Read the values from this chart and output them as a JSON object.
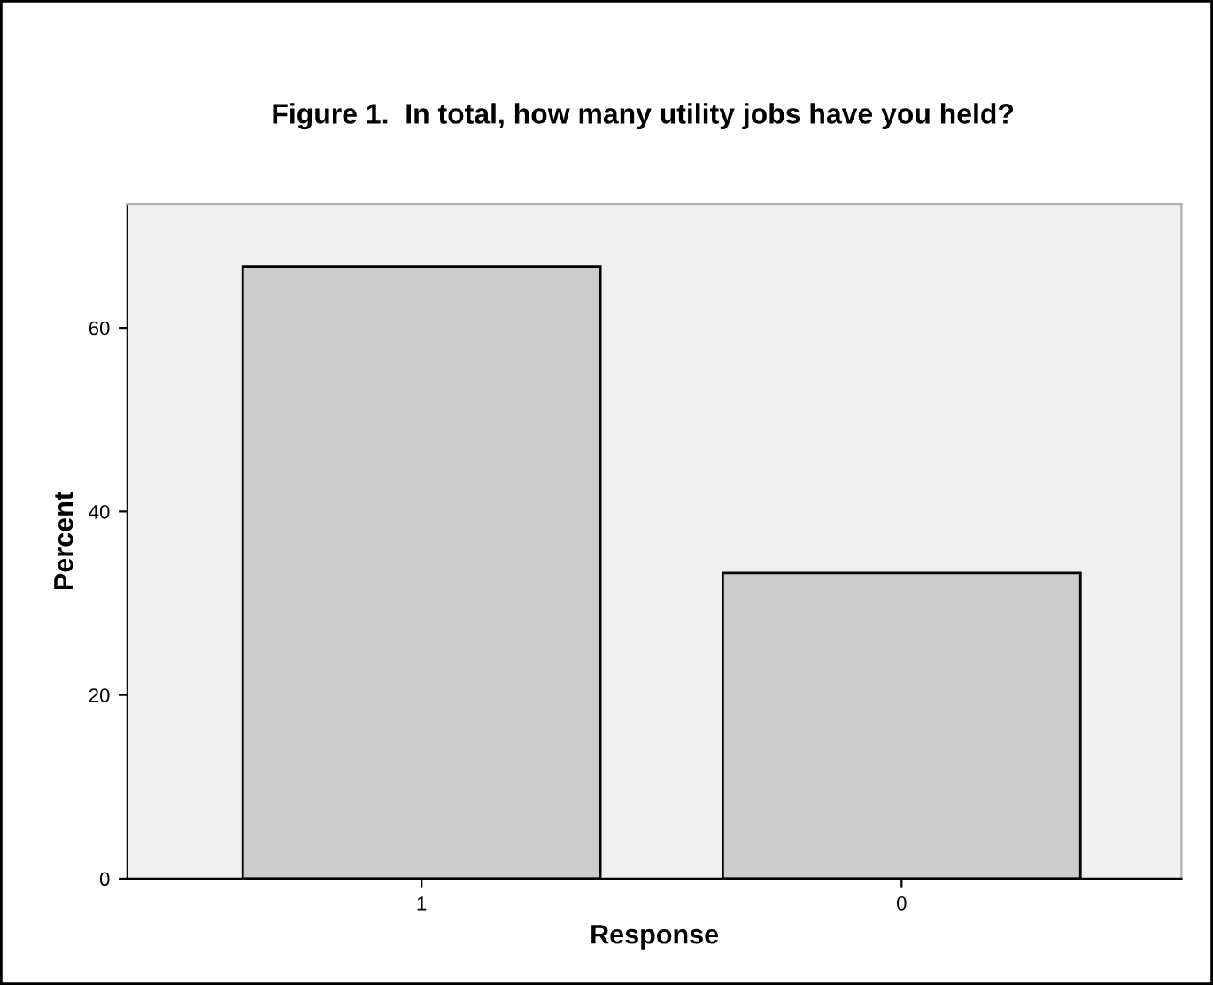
{
  "chart_data": {
    "type": "bar",
    "title": "Figure 1.  In total, how many utility jobs have you held?",
    "xlabel": "Response",
    "ylabel": "Percent",
    "categories": [
      "1",
      "0"
    ],
    "values": [
      66.7,
      33.3
    ],
    "color": "#cccccc",
    "ylim": [
      0,
      73.5
    ],
    "yticks": [
      0,
      20,
      40,
      60
    ],
    "grid": false,
    "legend": false
  }
}
